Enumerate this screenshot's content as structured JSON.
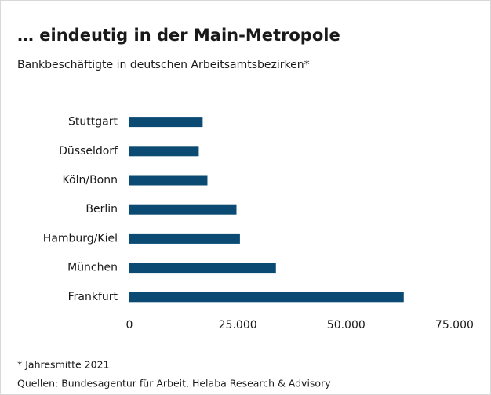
{
  "chart_data": {
    "type": "bar",
    "orientation": "horizontal",
    "title": "… eindeutig in der Main-Metropole",
    "subtitle": "Bankbeschäftigte in deutschen Arbeitsamtsbezirken*",
    "categories": [
      "Stuttgart",
      "Düsseldorf",
      "Köln/Bonn",
      "Berlin",
      "Hamburg/Kiel",
      "München",
      "Frankfurt"
    ],
    "values": [
      16900,
      16000,
      18000,
      24700,
      25500,
      33800,
      63300
    ],
    "color": "#0b4a72",
    "xlim": [
      0,
      78000
    ],
    "xticks": [
      0,
      {
        "value": 25000,
        "label": "25.000"
      },
      {
        "value": 50000,
        "label": "50.000"
      },
      {
        "value": 75000,
        "label": "75.000"
      }
    ],
    "grid": false,
    "notes": [
      "* Jahresmitte 2021",
      "Quellen: Bundesagentur für Arbeit, Helaba Research & Advisory"
    ]
  }
}
